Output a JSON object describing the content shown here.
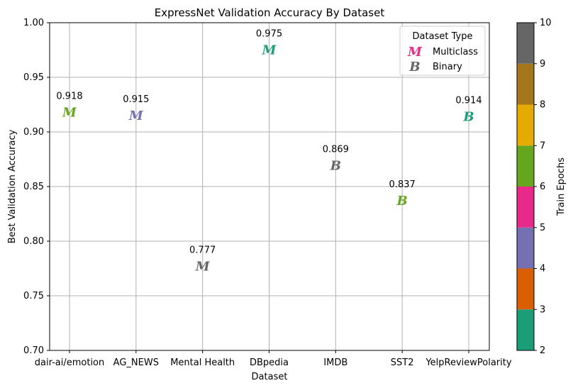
{
  "chart_data": {
    "type": "scatter",
    "title": "ExpressNet Validation Accuracy By Dataset",
    "xlabel": "Dataset",
    "ylabel": "Best Validation Accuracy",
    "ylim": [
      0.7,
      1.0
    ],
    "yticks": [
      "0.70",
      "0.75",
      "0.80",
      "0.85",
      "0.90",
      "0.95",
      "1.00"
    ],
    "grid": true,
    "categories": [
      "dair-ai/emotion",
      "AG_NEWS",
      "Mental Health",
      "DBpedia",
      "IMDB",
      "SST2",
      "YelpReviewPolarity"
    ],
    "points": [
      {
        "dataset": "dair-ai/emotion",
        "accuracy": 0.918,
        "label": "0.918",
        "type": "Multiclass",
        "epochs": 6
      },
      {
        "dataset": "AG_NEWS",
        "accuracy": 0.915,
        "label": "0.915",
        "type": "Multiclass",
        "epochs": 4
      },
      {
        "dataset": "Mental Health",
        "accuracy": 0.777,
        "label": "0.777",
        "type": "Multiclass",
        "epochs": 10
      },
      {
        "dataset": "DBpedia",
        "accuracy": 0.975,
        "label": "0.975",
        "type": "Multiclass",
        "epochs": 2
      },
      {
        "dataset": "IMDB",
        "accuracy": 0.869,
        "label": "0.869",
        "type": "Binary",
        "epochs": 10
      },
      {
        "dataset": "SST2",
        "accuracy": 0.837,
        "label": "0.837",
        "type": "Binary",
        "epochs": 6
      },
      {
        "dataset": "YelpReviewPolarity",
        "accuracy": 0.914,
        "label": "0.914",
        "type": "Binary",
        "epochs": 2
      }
    ],
    "legend": {
      "title": "Dataset Type",
      "placement": "top-right",
      "entries": [
        {
          "label": "Multiclass",
          "marker": "M",
          "color": "#e7298a"
        },
        {
          "label": "Binary",
          "marker": "B",
          "color": "#666666"
        }
      ]
    },
    "colorbar": {
      "label": "Train Epochs",
      "range": [
        2,
        10
      ],
      "ticks": [
        "2",
        "3",
        "4",
        "5",
        "6",
        "7",
        "8",
        "9",
        "10"
      ],
      "colors": [
        "#1b9e77",
        "#d95f02",
        "#7570b3",
        "#e7298a",
        "#66a61e",
        "#e6ab02",
        "#a6761d",
        "#666666"
      ]
    }
  }
}
